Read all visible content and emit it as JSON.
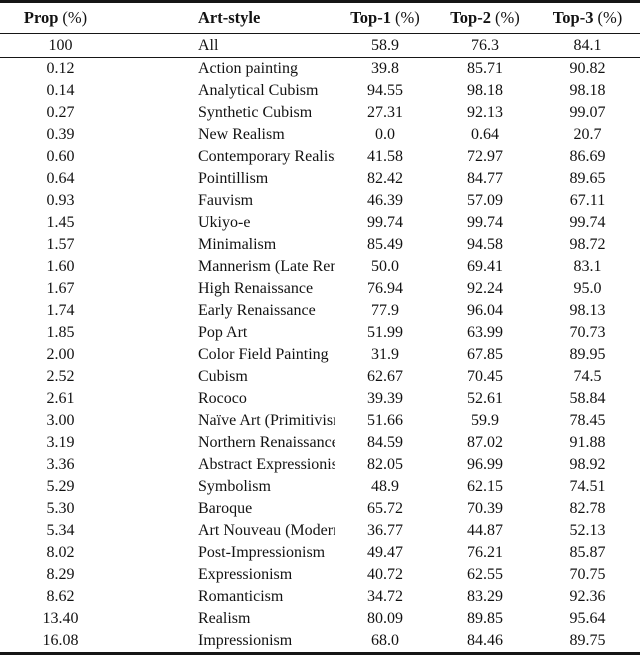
{
  "table": {
    "columns": [
      {
        "label": "Prop",
        "unit": "(%)"
      },
      {
        "label": "Art-style",
        "unit": ""
      },
      {
        "label": "Top-1",
        "unit": "(%)"
      },
      {
        "label": "Top-2",
        "unit": "(%)"
      },
      {
        "label": "Top-3",
        "unit": "(%)"
      }
    ],
    "summary_row": {
      "prop": "100",
      "style": "All",
      "top1": "58.9",
      "top2": "76.3",
      "top3": "84.1"
    },
    "rows": [
      [
        "0.12",
        "Action painting",
        "39.8",
        "85.71",
        "90.82"
      ],
      [
        "0.14",
        "Analytical Cubism",
        "94.55",
        "98.18",
        "98.18"
      ],
      [
        "0.27",
        "Synthetic Cubism",
        "27.31",
        "92.13",
        "99.07"
      ],
      [
        "0.39",
        "New Realism",
        "0.0",
        "0.64",
        "20.7"
      ],
      [
        "0.60",
        "Contemporary Realism",
        "41.58",
        "72.97",
        "86.69"
      ],
      [
        "0.64",
        "Pointillism",
        "82.42",
        "84.77",
        "89.65"
      ],
      [
        "0.93",
        "Fauvism",
        "46.39",
        "57.09",
        "67.11"
      ],
      [
        "1.45",
        "Ukiyo-e",
        "99.74",
        "99.74",
        "99.74"
      ],
      [
        "1.57",
        "Minimalism",
        "85.49",
        "94.58",
        "98.72"
      ],
      [
        "1.60",
        "Mannerism (Late Renaissance)",
        "50.0",
        "69.41",
        "83.1"
      ],
      [
        "1.67",
        "High Renaissance",
        "76.94",
        "92.24",
        "95.0"
      ],
      [
        "1.74",
        "Early Renaissance",
        "77.9",
        "96.04",
        "98.13"
      ],
      [
        "1.85",
        "Pop Art",
        "51.99",
        "63.99",
        "70.73"
      ],
      [
        "2.00",
        "Color Field Painting",
        "31.9",
        "67.85",
        "89.95"
      ],
      [
        "2.52",
        "Cubism",
        "62.67",
        "70.45",
        "74.5"
      ],
      [
        "2.61",
        "Rococo",
        "39.39",
        "52.61",
        "58.84"
      ],
      [
        "3.00",
        "Naïve Art (Primitivism)",
        "51.66",
        "59.9",
        "78.45"
      ],
      [
        "3.19",
        "Northern Renaissance",
        "84.59",
        "87.02",
        "91.88"
      ],
      [
        "3.36",
        "Abstract Expressionism",
        "82.05",
        "96.99",
        "98.92"
      ],
      [
        "5.29",
        "Symbolism",
        "48.9",
        "62.15",
        "74.51"
      ],
      [
        "5.30",
        "Baroque",
        "65.72",
        "70.39",
        "82.78"
      ],
      [
        "5.34",
        "Art Nouveau (Modern)",
        "36.77",
        "44.87",
        "52.13"
      ],
      [
        "8.02",
        "Post-Impressionism",
        "49.47",
        "76.21",
        "85.87"
      ],
      [
        "8.29",
        "Expressionism",
        "40.72",
        "62.55",
        "70.75"
      ],
      [
        "8.62",
        "Romanticism",
        "34.72",
        "83.29",
        "92.36"
      ],
      [
        "13.40",
        "Realism",
        "80.09",
        "89.85",
        "95.64"
      ],
      [
        "16.08",
        "Impressionism",
        "68.0",
        "84.46",
        "89.75"
      ]
    ]
  }
}
